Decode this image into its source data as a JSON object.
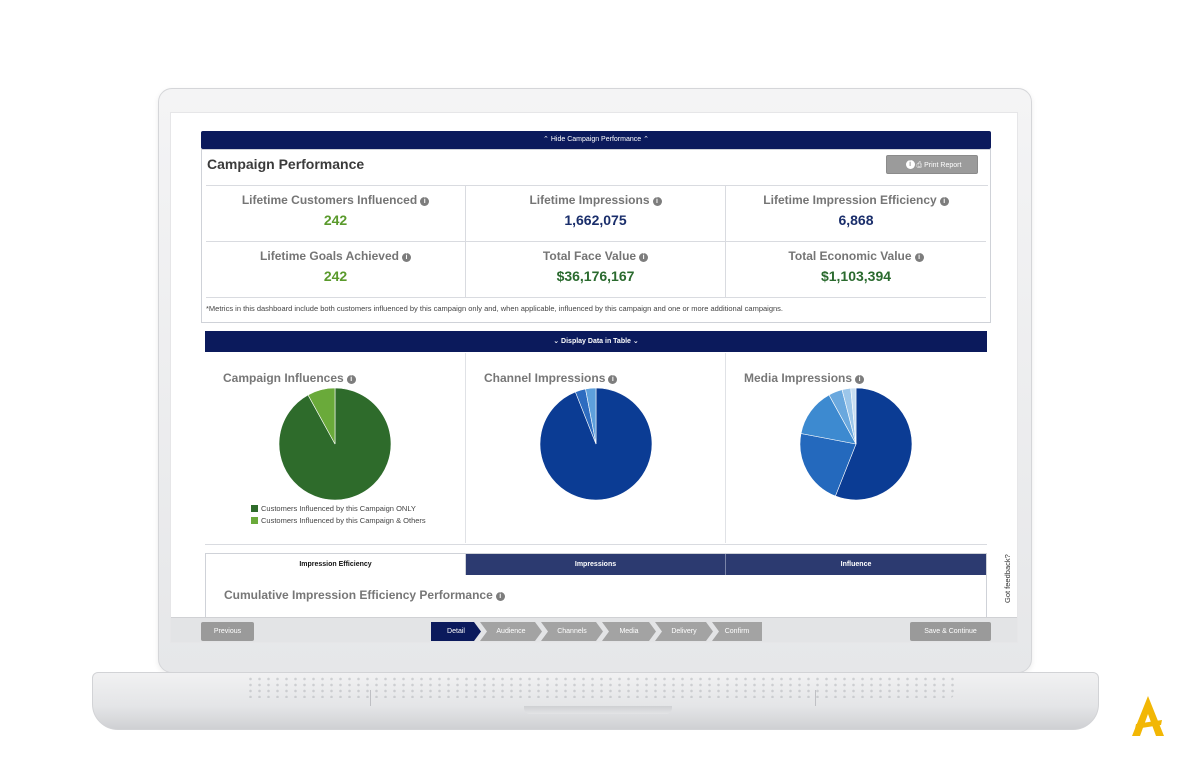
{
  "banner": {
    "hide_label": "⌃ Hide Campaign Performance ⌃"
  },
  "performance": {
    "title": "Campaign Performance",
    "print_label": "Print Report",
    "metrics": [
      {
        "label": "Lifetime Customers Influenced",
        "value": "242"
      },
      {
        "label": "Lifetime Impressions",
        "value": "1,662,075"
      },
      {
        "label": "Lifetime Impression Efficiency",
        "value": "6,868"
      },
      {
        "label": "Lifetime Goals Achieved",
        "value": "242"
      },
      {
        "label": "Total Face Value",
        "value": "$36,176,167"
      },
      {
        "label": "Total Economic Value",
        "value": "$1,103,394"
      }
    ],
    "disclaimer": "*Metrics in this dashboard include both customers influenced by this campaign only and, when applicable, influenced by this campaign and one or more additional campaigns."
  },
  "display_bar": {
    "label": "Display Data in Table"
  },
  "charts": {
    "campaign": {
      "title": "Campaign Influences",
      "legend": [
        "Customers Influenced by this Campaign ONLY",
        "Customers Influenced by this Campaign & Others"
      ]
    },
    "channel": {
      "title": "Channel Impressions"
    },
    "media": {
      "title": "Media Impressions"
    }
  },
  "chart_data": [
    {
      "type": "pie",
      "values": [
        92,
        8
      ],
      "colors": [
        "#2e6b2b",
        "#6aaa3a"
      ]
    },
    {
      "type": "pie",
      "values": [
        94,
        3,
        3
      ],
      "colors": [
        "#0b3c94",
        "#2e6cc0",
        "#5ea0dc"
      ]
    },
    {
      "type": "pie",
      "values": [
        56,
        22,
        14,
        4,
        2.5,
        1.5
      ],
      "colors": [
        "#0b3c94",
        "#2469bd",
        "#3d8ad0",
        "#6aa8de",
        "#9cc6ea",
        "#c8def2"
      ]
    }
  ],
  "tabs": {
    "items": [
      "Impression Efficiency",
      "Impressions",
      "Influence"
    ],
    "section_title": "Cumulative Impression Efficiency Performance"
  },
  "feedback": {
    "label": "Got feedback?"
  },
  "footer": {
    "previous_label": "Previous",
    "save_label": "Save & Continue",
    "steps": [
      "Detail",
      "Audience",
      "Channels",
      "Media",
      "Delivery",
      "Confirm"
    ]
  }
}
